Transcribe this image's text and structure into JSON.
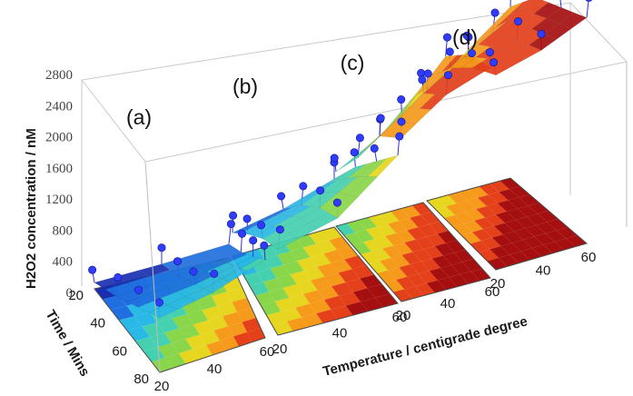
{
  "chart_data": {
    "type": "surface-3d",
    "title": "",
    "zlabel": "H2O2 concentration / nM",
    "time_label": "Time / Mins",
    "temperature_label": "Temperature / centigrade degree",
    "z_ticks": [
      "0",
      "400",
      "800",
      "1200",
      "1600",
      "2000",
      "2400",
      "2800"
    ],
    "zlim": [
      0,
      2800
    ],
    "time_ticks": [
      "20",
      "40",
      "60",
      "80"
    ],
    "temperature_ticks": [
      "20",
      "40",
      "60"
    ],
    "panels": [
      {
        "label": "(a)",
        "values": [
          [
            80,
            120,
            180
          ],
          [
            260,
            320,
            420
          ],
          [
            480,
            560,
            700
          ],
          [
            700,
            800,
            1000
          ]
        ]
      },
      {
        "label": "(b)",
        "values": [
          [
            300,
            420,
            620
          ],
          [
            620,
            800,
            1100
          ],
          [
            900,
            1100,
            1500
          ],
          [
            1100,
            1300,
            1900
          ]
        ]
      },
      {
        "label": "(c)",
        "values": [
          [
            700,
            1000,
            1500
          ],
          [
            1200,
            1600,
            2200
          ],
          [
            1800,
            2200,
            2550
          ],
          [
            2100,
            2500,
            2700
          ]
        ]
      },
      {
        "label": "(d)",
        "values": [
          [
            1400,
            1800,
            2200
          ],
          [
            2000,
            2300,
            2600
          ],
          [
            2300,
            2500,
            2750
          ],
          [
            2500,
            2650,
            2900
          ]
        ]
      }
    ],
    "colormap": [
      "#1a2fb0",
      "#1f6fe0",
      "#2ab8e6",
      "#45d1b0",
      "#8ad64a",
      "#e6d61f",
      "#f59a1a",
      "#e4401a",
      "#a50f0f"
    ]
  }
}
